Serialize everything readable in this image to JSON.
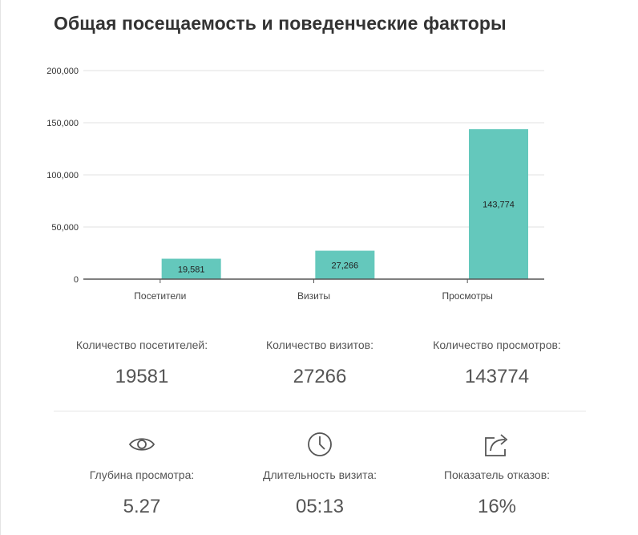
{
  "title": "Общая посещаемость и поведенческие факторы",
  "chart_data": {
    "type": "bar",
    "categories": [
      "Посетители",
      "Визиты",
      "Просмотры"
    ],
    "values": [
      19581,
      27266,
      143774
    ],
    "value_labels": [
      "19,581",
      "27,266",
      "143,774"
    ],
    "y_ticks": [
      0,
      50000,
      100000,
      150000,
      200000
    ],
    "y_tick_labels": [
      "0",
      "50,000",
      "100,000",
      "150,000",
      "200,000"
    ],
    "ylim": [
      0,
      200000
    ],
    "bar_color": "#64c8bc",
    "grid": true,
    "legend": "none"
  },
  "stats": [
    {
      "label": "Количество посетителей:",
      "value": "19581"
    },
    {
      "label": "Количество визитов:",
      "value": "27266"
    },
    {
      "label": "Количество просмотров:",
      "value": "143774"
    }
  ],
  "metrics": [
    {
      "icon": "eye-icon",
      "label": "Глубина просмотра:",
      "value": "5.27"
    },
    {
      "icon": "clock-icon",
      "label": "Длительность визита:",
      "value": "05:13"
    },
    {
      "icon": "share-icon",
      "label": "Показатель отказов:",
      "value": "16%"
    }
  ]
}
